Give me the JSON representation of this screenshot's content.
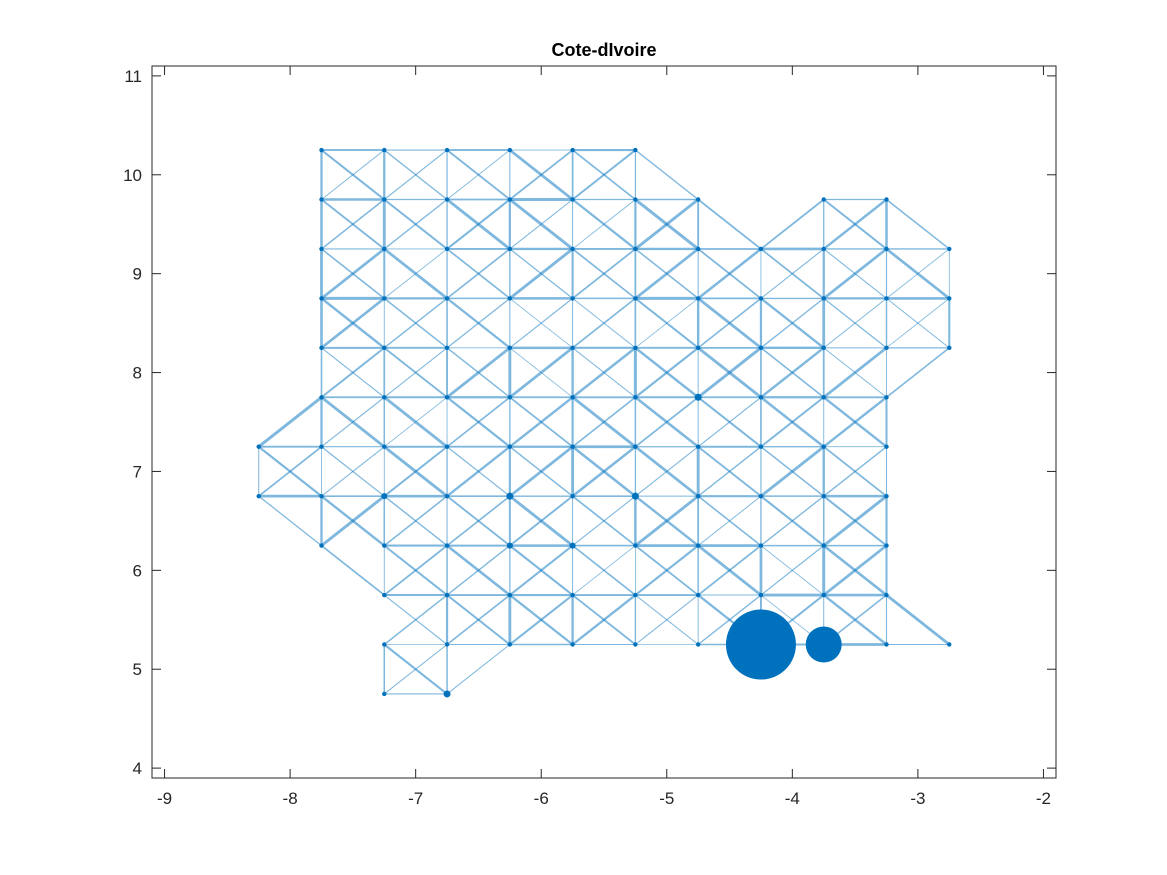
{
  "chart_data": {
    "type": "scatter",
    "title": "Cote-dIvoire",
    "xlabel": "",
    "ylabel": "",
    "xlim": [
      -9.1,
      -1.9
    ],
    "ylim": [
      3.9,
      11.1
    ],
    "xticks": [
      -9,
      -8,
      -7,
      -6,
      -5,
      -4,
      -3,
      -2
    ],
    "yticks": [
      4,
      5,
      6,
      7,
      8,
      9,
      10,
      11
    ],
    "grid": false,
    "box": true,
    "colors": {
      "node": "#0072BD",
      "edge": "#0072BD",
      "axis": "#262626"
    },
    "grid_step": 0.5,
    "nodes": [
      [
        -7.75,
        10.25
      ],
      [
        -7.25,
        10.25
      ],
      [
        -6.75,
        10.25
      ],
      [
        -6.25,
        10.25
      ],
      [
        -5.75,
        10.25
      ],
      [
        -5.25,
        10.25
      ],
      [
        -7.75,
        9.75
      ],
      [
        -7.25,
        9.75
      ],
      [
        -6.75,
        9.75
      ],
      [
        -6.25,
        9.75
      ],
      [
        -5.75,
        9.75
      ],
      [
        -5.25,
        9.75
      ],
      [
        -4.75,
        9.75
      ],
      [
        -3.75,
        9.75
      ],
      [
        -3.25,
        9.75
      ],
      [
        -7.75,
        9.25
      ],
      [
        -7.25,
        9.25
      ],
      [
        -6.75,
        9.25
      ],
      [
        -6.25,
        9.25
      ],
      [
        -5.75,
        9.25
      ],
      [
        -5.25,
        9.25
      ],
      [
        -4.75,
        9.25
      ],
      [
        -4.25,
        9.25
      ],
      [
        -3.75,
        9.25
      ],
      [
        -3.25,
        9.25
      ],
      [
        -2.75,
        9.25
      ],
      [
        -7.75,
        8.75
      ],
      [
        -7.25,
        8.75
      ],
      [
        -6.75,
        8.75
      ],
      [
        -6.25,
        8.75
      ],
      [
        -5.75,
        8.75
      ],
      [
        -5.25,
        8.75
      ],
      [
        -4.75,
        8.75
      ],
      [
        -4.25,
        8.75
      ],
      [
        -3.75,
        8.75
      ],
      [
        -3.25,
        8.75
      ],
      [
        -2.75,
        8.75
      ],
      [
        -7.75,
        8.25
      ],
      [
        -7.25,
        8.25
      ],
      [
        -6.75,
        8.25
      ],
      [
        -6.25,
        8.25
      ],
      [
        -5.75,
        8.25
      ],
      [
        -5.25,
        8.25
      ],
      [
        -4.75,
        8.25
      ],
      [
        -4.25,
        8.25
      ],
      [
        -3.75,
        8.25
      ],
      [
        -3.25,
        8.25
      ],
      [
        -2.75,
        8.25
      ],
      [
        -7.75,
        7.75
      ],
      [
        -7.25,
        7.75
      ],
      [
        -6.75,
        7.75
      ],
      [
        -6.25,
        7.75
      ],
      [
        -5.75,
        7.75
      ],
      [
        -5.25,
        7.75
      ],
      [
        -4.75,
        7.75
      ],
      [
        -4.25,
        7.75
      ],
      [
        -3.75,
        7.75
      ],
      [
        -3.25,
        7.75
      ],
      [
        -8.25,
        7.25
      ],
      [
        -7.75,
        7.25
      ],
      [
        -7.25,
        7.25
      ],
      [
        -6.75,
        7.25
      ],
      [
        -6.25,
        7.25
      ],
      [
        -5.75,
        7.25
      ],
      [
        -5.25,
        7.25
      ],
      [
        -4.75,
        7.25
      ],
      [
        -4.25,
        7.25
      ],
      [
        -3.75,
        7.25
      ],
      [
        -3.25,
        7.25
      ],
      [
        -8.25,
        6.75
      ],
      [
        -7.75,
        6.75
      ],
      [
        -7.25,
        6.75
      ],
      [
        -6.75,
        6.75
      ],
      [
        -6.25,
        6.75
      ],
      [
        -5.75,
        6.75
      ],
      [
        -5.25,
        6.75
      ],
      [
        -4.75,
        6.75
      ],
      [
        -4.25,
        6.75
      ],
      [
        -3.75,
        6.75
      ],
      [
        -3.25,
        6.75
      ],
      [
        -7.75,
        6.25
      ],
      [
        -7.25,
        6.25
      ],
      [
        -6.75,
        6.25
      ],
      [
        -6.25,
        6.25
      ],
      [
        -5.75,
        6.25
      ],
      [
        -5.25,
        6.25
      ],
      [
        -4.75,
        6.25
      ],
      [
        -4.25,
        6.25
      ],
      [
        -3.75,
        6.25
      ],
      [
        -3.25,
        6.25
      ],
      [
        -7.25,
        5.75
      ],
      [
        -6.75,
        5.75
      ],
      [
        -6.25,
        5.75
      ],
      [
        -5.75,
        5.75
      ],
      [
        -5.25,
        5.75
      ],
      [
        -4.75,
        5.75
      ],
      [
        -4.25,
        5.75
      ],
      [
        -3.75,
        5.75
      ],
      [
        -3.25,
        5.75
      ],
      [
        -7.25,
        5.25
      ],
      [
        -6.75,
        5.25
      ],
      [
        -6.25,
        5.25
      ],
      [
        -5.75,
        5.25
      ],
      [
        -5.25,
        5.25
      ],
      [
        -4.75,
        5.25
      ],
      [
        -4.25,
        5.25
      ],
      [
        -3.75,
        5.25
      ],
      [
        -3.25,
        5.25
      ],
      [
        -2.75,
        5.25
      ],
      [
        -7.25,
        4.75
      ],
      [
        -6.75,
        4.75
      ]
    ],
    "node_sizes": [
      {
        "x": -4.25,
        "y": 5.25,
        "radius": 35
      },
      {
        "x": -3.75,
        "y": 5.25,
        "radius": 18
      },
      {
        "x": -4.75,
        "y": 7.75,
        "radius": 3.5
      },
      {
        "x": -6.75,
        "y": 4.75,
        "radius": 3.5
      },
      {
        "x": -5.25,
        "y": 6.75,
        "radius": 3.5
      },
      {
        "x": -6.25,
        "y": 6.75,
        "radius": 3.5
      },
      {
        "x": -7.25,
        "y": 6.75,
        "radius": 3
      },
      {
        "x": -5.75,
        "y": 6.25,
        "radius": 3
      },
      {
        "x": -6.25,
        "y": 6.25,
        "radius": 3
      }
    ],
    "excluded_edges": [
      [
        -7.75,
        6.25,
        -7.25,
        6.25
      ],
      [
        -7.75,
        6.25,
        -7.25,
        5.75
      ],
      [
        -7.25,
        5.75,
        -7.25,
        5.25
      ]
    ],
    "extra_edges": [
      [
        -7.75,
        6.25,
        -7.25,
        5.75
      ],
      [
        -4.75,
        9.75,
        -4.25,
        9.25
      ]
    ]
  }
}
